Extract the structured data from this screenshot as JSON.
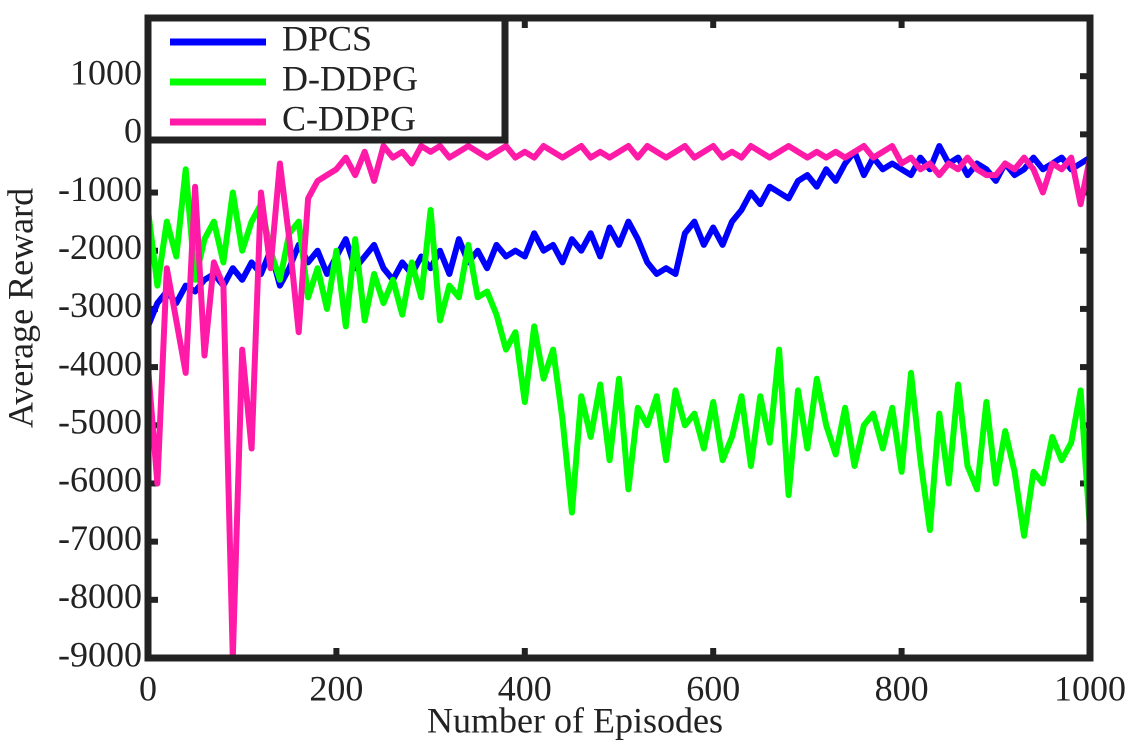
{
  "chart_data": {
    "type": "line",
    "x_label": "Number of Episodes",
    "y_label": "Average Reward",
    "xlim": [
      0,
      1000
    ],
    "xticks": [
      0,
      200,
      400,
      600,
      800,
      1000
    ],
    "ylim": [
      -9000,
      2000
    ],
    "yticks": [
      -9000,
      -8000,
      -7000,
      -6000,
      -5000,
      -4000,
      -3000,
      -2000,
      -1000,
      0,
      1000
    ],
    "legend": "upper left",
    "grid": false,
    "x": [
      0,
      10,
      20,
      30,
      40,
      50,
      60,
      70,
      80,
      90,
      100,
      110,
      120,
      130,
      140,
      150,
      160,
      170,
      180,
      190,
      200,
      210,
      220,
      230,
      240,
      250,
      260,
      270,
      280,
      290,
      300,
      310,
      320,
      330,
      340,
      350,
      360,
      370,
      380,
      390,
      400,
      410,
      420,
      430,
      440,
      450,
      460,
      470,
      480,
      490,
      500,
      510,
      520,
      530,
      540,
      550,
      560,
      570,
      580,
      590,
      600,
      610,
      620,
      630,
      640,
      650,
      660,
      670,
      680,
      690,
      700,
      710,
      720,
      730,
      740,
      750,
      760,
      770,
      780,
      790,
      800,
      810,
      820,
      830,
      840,
      850,
      860,
      870,
      880,
      890,
      900,
      910,
      920,
      930,
      940,
      950,
      960,
      970,
      980,
      990,
      1000
    ],
    "series": [
      {
        "name": "DPCS",
        "color": "#0000ff",
        "values": [
          -3300,
          -2900,
          -2700,
          -2900,
          -2600,
          -2700,
          -2500,
          -2400,
          -2600,
          -2300,
          -2500,
          -2200,
          -2400,
          -2000,
          -2600,
          -2300,
          -1900,
          -2200,
          -2000,
          -2400,
          -2100,
          -1800,
          -2300,
          -2100,
          -1900,
          -2300,
          -2500,
          -2200,
          -2400,
          -2100,
          -2300,
          -2000,
          -2400,
          -1800,
          -2200,
          -2000,
          -2300,
          -1900,
          -2100,
          -2000,
          -2100,
          -1700,
          -2000,
          -1900,
          -2200,
          -1800,
          -2000,
          -1700,
          -2100,
          -1600,
          -1900,
          -1500,
          -1800,
          -2200,
          -2400,
          -2300,
          -2400,
          -1700,
          -1500,
          -1900,
          -1600,
          -1900,
          -1500,
          -1300,
          -1000,
          -1200,
          -900,
          -1000,
          -1100,
          -800,
          -700,
          -900,
          -600,
          -800,
          -500,
          -300,
          -700,
          -400,
          -600,
          -500,
          -600,
          -700,
          -400,
          -600,
          -200,
          -500,
          -400,
          -700,
          -500,
          -600,
          -800,
          -500,
          -700,
          -600,
          -400,
          -600,
          -500,
          -400,
          -600,
          -500,
          -400
        ]
      },
      {
        "name": "D-DDPG",
        "color": "#00ff00",
        "values": [
          -1300,
          -2600,
          -1500,
          -2100,
          -600,
          -2500,
          -1800,
          -1500,
          -2200,
          -1000,
          -2000,
          -1500,
          -1200,
          -2000,
          -2500,
          -1700,
          -1500,
          -2800,
          -2300,
          -3000,
          -2000,
          -3300,
          -1800,
          -3200,
          -2400,
          -2900,
          -2500,
          -3100,
          -2200,
          -2800,
          -1300,
          -3200,
          -2600,
          -2800,
          -1900,
          -2800,
          -2700,
          -3100,
          -3700,
          -3400,
          -4600,
          -3300,
          -4200,
          -3700,
          -4900,
          -6500,
          -4500,
          -5200,
          -4300,
          -5600,
          -4200,
          -6100,
          -4700,
          -5000,
          -4500,
          -5600,
          -4400,
          -5000,
          -4800,
          -5400,
          -4600,
          -5600,
          -5200,
          -4500,
          -5700,
          -4500,
          -5300,
          -3700,
          -6200,
          -4400,
          -5400,
          -4200,
          -5000,
          -5500,
          -4700,
          -5700,
          -5000,
          -4800,
          -5400,
          -4700,
          -5800,
          -4100,
          -5600,
          -6800,
          -4800,
          -6000,
          -4300,
          -5700,
          -6100,
          -4600,
          -6000,
          -5100,
          -5800,
          -6900,
          -5800,
          -6000,
          -5200,
          -5600,
          -5300,
          -4400,
          -6800
        ]
      },
      {
        "name": "C-DDPG",
        "color": "#ff1aa8",
        "values": [
          -4000,
          -6000,
          -2300,
          -3200,
          -4100,
          -900,
          -3800,
          -2200,
          -2600,
          -9000,
          -3700,
          -5400,
          -1000,
          -2300,
          -500,
          -1800,
          -3400,
          -1100,
          -800,
          -700,
          -600,
          -400,
          -700,
          -300,
          -800,
          -200,
          -400,
          -300,
          -500,
          -200,
          -300,
          -200,
          -400,
          -300,
          -200,
          -300,
          -400,
          -300,
          -200,
          -400,
          -300,
          -400,
          -200,
          -300,
          -400,
          -300,
          -200,
          -400,
          -300,
          -400,
          -300,
          -200,
          -400,
          -200,
          -300,
          -400,
          -300,
          -200,
          -400,
          -300,
          -200,
          -400,
          -300,
          -400,
          -200,
          -300,
          -400,
          -300,
          -200,
          -300,
          -400,
          -300,
          -400,
          -300,
          -400,
          -300,
          -200,
          -400,
          -300,
          -200,
          -500,
          -400,
          -600,
          -500,
          -700,
          -500,
          -600,
          -400,
          -600,
          -700,
          -700,
          -500,
          -600,
          -400,
          -600,
          -1000,
          -500,
          -600,
          -400,
          -1200,
          -400
        ]
      }
    ]
  }
}
